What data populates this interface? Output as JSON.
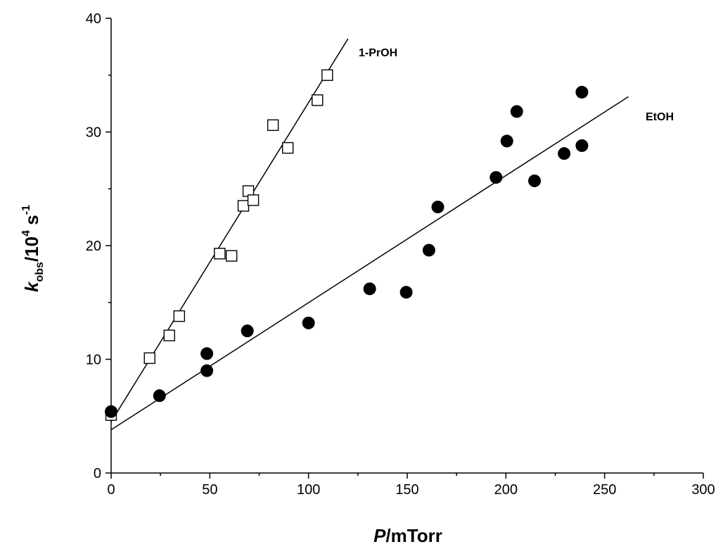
{
  "chart_data": {
    "type": "scatter",
    "title": "",
    "xlabel_main": "P",
    "xlabel_unit": "/mTorr",
    "ylabel_k": "k",
    "ylabel_sub": "obs",
    "ylabel_mid": "/10",
    "ylabel_exp": "4",
    "ylabel_unit": " s",
    "ylabel_unit_exp": "-1",
    "xlim": [
      0,
      300
    ],
    "ylim": [
      0,
      40
    ],
    "x_ticks": [
      "0",
      "50",
      "100",
      "150",
      "200",
      "250",
      "300"
    ],
    "y_ticks": [
      "0",
      "10",
      "20",
      "30",
      "40"
    ],
    "grid": false,
    "series": [
      {
        "name": "1-PrOH",
        "marker": "open-square",
        "color": "#000000",
        "points": [
          [
            0,
            5.1
          ],
          [
            19.5,
            10.1
          ],
          [
            29.5,
            12.1
          ],
          [
            34.5,
            13.8
          ],
          [
            55,
            19.3
          ],
          [
            61,
            19.1
          ],
          [
            67,
            23.5
          ],
          [
            69.5,
            24.8
          ],
          [
            72,
            24.0
          ],
          [
            82,
            30.6
          ],
          [
            89.5,
            28.6
          ],
          [
            104.5,
            32.8
          ],
          [
            109.5,
            35.0
          ]
        ],
        "fit": {
          "x": [
            0,
            120
          ],
          "y": [
            4.5,
            38.2
          ]
        }
      },
      {
        "name": "EtOH",
        "marker": "filled-circle",
        "color": "#000000",
        "points": [
          [
            0,
            5.4
          ],
          [
            24.5,
            6.8
          ],
          [
            48.5,
            9.0
          ],
          [
            48.5,
            10.5
          ],
          [
            69,
            12.5
          ],
          [
            100,
            13.2
          ],
          [
            131,
            16.2
          ],
          [
            149.5,
            15.9
          ],
          [
            161,
            19.6
          ],
          [
            165.5,
            23.4
          ],
          [
            195,
            26.0
          ],
          [
            200.5,
            29.2
          ],
          [
            205.5,
            31.8
          ],
          [
            214.5,
            25.7
          ],
          [
            229.5,
            28.1
          ],
          [
            238.5,
            28.8
          ],
          [
            238.5,
            33.5
          ]
        ],
        "fit": {
          "x": [
            0,
            262
          ],
          "y": [
            3.8,
            33.1
          ]
        }
      }
    ]
  }
}
